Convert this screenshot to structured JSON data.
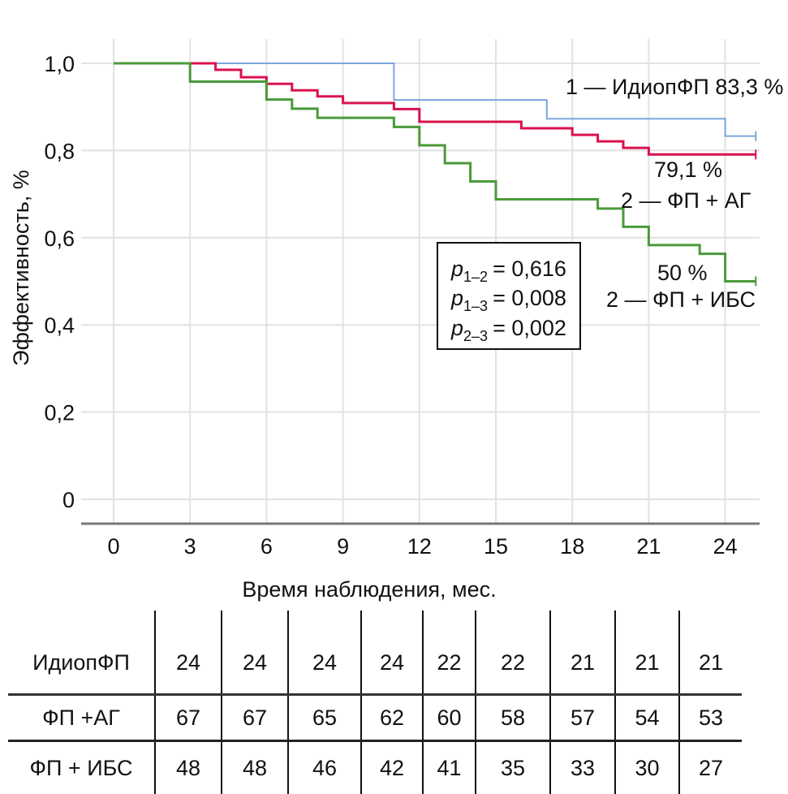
{
  "chart_data": {
    "type": "line",
    "subtype": "kaplan-meier step",
    "xlabel": "Время наблюдения, мес.",
    "ylabel": "Эффективность, %",
    "xlim": [
      -1.2,
      25.3
    ],
    "ylim": [
      -0.055,
      1.0
    ],
    "xticks": [
      0,
      3,
      6,
      9,
      12,
      15,
      18,
      21,
      24
    ],
    "xtick_labels": [
      "0",
      "3",
      "6",
      "9",
      "12",
      "15",
      "18",
      "21",
      "24"
    ],
    "yticks": [
      0,
      0.2,
      0.4,
      0.6,
      0.8,
      1.0
    ],
    "ytick_labels": [
      "0",
      "0,2",
      "0,4",
      "0,6",
      "0,8",
      "1,0"
    ],
    "grid": true,
    "series": [
      {
        "name": "1 — ИдиопФП",
        "color": "#7aa6dc",
        "x": [
          0,
          11,
          17,
          24,
          25.2
        ],
        "y": [
          1.0,
          0.916,
          0.873,
          0.833,
          0.833
        ],
        "censor_end": true,
        "annotation": [
          "1 — ИдиопФП 83,3 %"
        ]
      },
      {
        "name": "2 — ФП + АГ",
        "color": "#d9124e",
        "x": [
          0,
          4,
          5,
          6,
          7,
          8,
          9,
          11,
          12,
          16,
          18,
          19,
          20,
          21,
          25.2
        ],
        "y": [
          1.0,
          0.985,
          0.968,
          0.953,
          0.938,
          0.924,
          0.909,
          0.895,
          0.866,
          0.851,
          0.836,
          0.821,
          0.806,
          0.791,
          0.791
        ],
        "censor_end": true,
        "annotation": [
          "79,1 %",
          "2 — ФП + АГ"
        ]
      },
      {
        "name": "2 — ФП + ИБС",
        "color": "#4a9a3a",
        "x": [
          0,
          3,
          6,
          7,
          8,
          11,
          12,
          13,
          14,
          15,
          19,
          20,
          21,
          23,
          24,
          25.2
        ],
        "y": [
          1.0,
          0.958,
          0.917,
          0.896,
          0.875,
          0.854,
          0.812,
          0.771,
          0.729,
          0.688,
          0.667,
          0.625,
          0.583,
          0.563,
          0.5,
          0.5
        ],
        "censor_end": true,
        "annotation": [
          "50 %",
          "2 — ФП + ИБС"
        ]
      }
    ],
    "pvalues": [
      {
        "p": "p",
        "sub": "1–2",
        "value": "= 0,616"
      },
      {
        "p": "p",
        "sub": "1–3",
        "value": "= 0,008"
      },
      {
        "p": "p",
        "sub": "2–3",
        "value": "= 0,002"
      }
    ],
    "risk_table": {
      "rows": [
        {
          "label": "ИдиопФП",
          "values": [
            24,
            24,
            24,
            24,
            22,
            22,
            21,
            21,
            21
          ]
        },
        {
          "label": "ФП +АГ",
          "values": [
            67,
            67,
            65,
            62,
            60,
            58,
            57,
            54,
            53
          ]
        },
        {
          "label": "ФП + ИБС",
          "values": [
            48,
            48,
            46,
            42,
            41,
            35,
            33,
            30,
            27
          ]
        }
      ]
    }
  }
}
